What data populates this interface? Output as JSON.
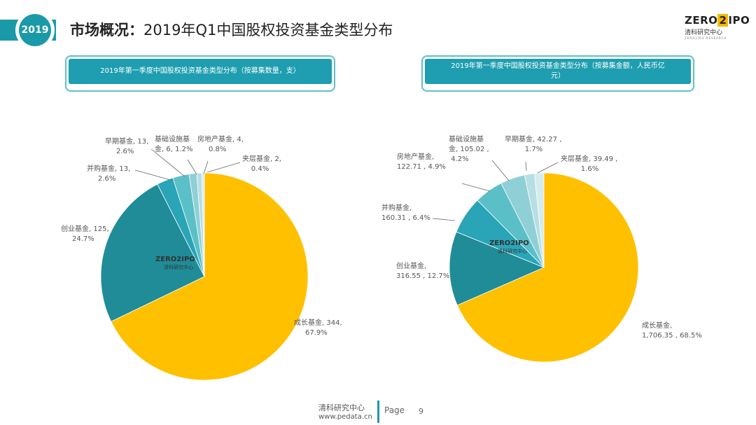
{
  "header": {
    "badge_year": "2019",
    "title_bold": "市场概况：",
    "title_rest": "2019年Q1中国股权投资基金类型分布",
    "logo": {
      "main_a": "ZERO",
      "main_z": "2",
      "main_b": "IPO",
      "sub": "清科研究中心",
      "tiny": "ZERO2IPO RESEARCH"
    }
  },
  "watermark": {
    "main": "ZERO2IPO",
    "sub": "清科研究中心"
  },
  "colors": {
    "accent": "#1a9aa8",
    "gold": "#ffc000",
    "teal_dark": "#1f8c98",
    "teal_mid": "#2aa5b8",
    "teal_light": "#5bbfc8",
    "teal_pale1": "#8fd0d6",
    "teal_pale2": "#b7dfe3",
    "teal_pale3": "#d5ecee"
  },
  "chart_data": [
    {
      "type": "pie",
      "title": "2019年第一季度中国股权投资基金类型分布（按募集数量，支）",
      "slices": [
        {
          "name": "成长基金",
          "value": 344,
          "percent": "67.9%",
          "label_l1": "成长基金, 344,",
          "label_l2": "67.9%"
        },
        {
          "name": "创业基金",
          "value": 125,
          "percent": "24.7%",
          "label_l1": "创业基金, 125,",
          "label_l2": "24.7%"
        },
        {
          "name": "并购基金",
          "value": 13,
          "percent": "2.6%",
          "label_l1": "并购基金, 13,",
          "label_l2": "2.6%"
        },
        {
          "name": "早期基金",
          "value": 13,
          "percent": "2.6%",
          "label_l1": "早期基金, 13,",
          "label_l2": "2.6%"
        },
        {
          "name": "基础设施基金",
          "value": 6,
          "percent": "1.2%",
          "label_l1": "基础设施基",
          "label_l2": "金, 6, 1.2%"
        },
        {
          "name": "房地产基金",
          "value": 4,
          "percent": "0.8%",
          "label_l1": "房地产基金, 4,",
          "label_l2": "0.8%"
        },
        {
          "name": "夹层基金",
          "value": 2,
          "percent": "0.4%",
          "label_l1": "夹层基金, 2,",
          "label_l2": "0.4%"
        }
      ]
    },
    {
      "type": "pie",
      "title_l1": "2019年第一季度中国股权投资基金类型分布（按募集金额，人民币亿",
      "title_l2": "元）",
      "slices": [
        {
          "name": "成长基金",
          "value": 1706.35,
          "percent": "68.5%",
          "label_l1": "成长基金,",
          "label_l2": "1,706.35 , 68.5%"
        },
        {
          "name": "创业基金",
          "value": 316.55,
          "percent": "12.7%",
          "label_l1": "创业基金,",
          "label_l2": "316.55 , 12.7%"
        },
        {
          "name": "并购基金",
          "value": 160.31,
          "percent": "6.4%",
          "label_l1": "并购基金,",
          "label_l2": "160.31 , 6.4%"
        },
        {
          "name": "房地产基金",
          "value": 122.71,
          "percent": "4.9%",
          "label_l1": "房地产基金,",
          "label_l2": "122.71 , 4.9%"
        },
        {
          "name": "基础设施基金",
          "value": 105.02,
          "percent": "4.2%",
          "label_l1": "基础设施基",
          "label_l2": "金, 105.02 ,",
          "label_l3": "4.2%"
        },
        {
          "name": "早期基金",
          "value": 42.27,
          "percent": "1.7%",
          "label_l1": "早期基金, 42.27 ,",
          "label_l2": "1.7%"
        },
        {
          "name": "夹层基金",
          "value": 39.49,
          "percent": "1.6%",
          "label_l1": "夹层基金, 39.49 ,",
          "label_l2": "1.6%"
        }
      ]
    }
  ],
  "footer": {
    "org": "清科研究中心",
    "url": "www.pedata.cn",
    "page_label": "Page",
    "page_number": "9"
  }
}
